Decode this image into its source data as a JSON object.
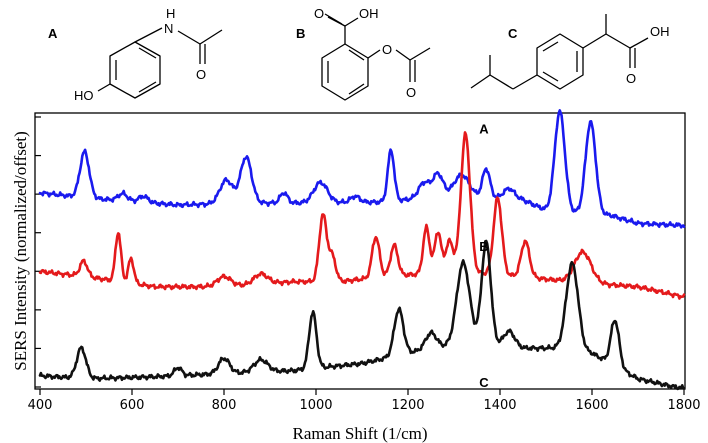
{
  "structures": {
    "A": {
      "label": "A",
      "atoms": {
        "NH": "N",
        "H": "H",
        "O": "O",
        "HO": "HO"
      }
    },
    "B": {
      "label": "B",
      "atoms": {
        "OH": "OH",
        "O_carboxyl": "O",
        "O_ester": "O",
        "O_carbonyl": "O"
      }
    },
    "C": {
      "label": "C",
      "atoms": {
        "OH": "OH",
        "O": "O"
      }
    }
  },
  "chart_data": {
    "type": "line",
    "title": "",
    "xlabel": "Raman Shift (1/cm)",
    "ylabel": "SERS Intensity (normalized/offset)",
    "xlim": [
      400,
      1800
    ],
    "ylim": [
      0,
      2.7
    ],
    "xticks": [
      400,
      600,
      800,
      1000,
      1200,
      1400,
      1600,
      1800
    ],
    "yticks_count": 8,
    "series": [
      {
        "name": "A",
        "color": "#1a1aee",
        "offset": 1.6,
        "baseline": [
          [
            400,
            0.32
          ],
          [
            500,
            0.27
          ],
          [
            700,
            0.2
          ],
          [
            850,
            0.22
          ],
          [
            1000,
            0.22
          ],
          [
            1150,
            0.23
          ],
          [
            1300,
            0.3
          ],
          [
            1450,
            0.25
          ],
          [
            1500,
            0.15
          ],
          [
            1570,
            0.12
          ],
          [
            1640,
            0.1
          ],
          [
            1700,
            0.02
          ],
          [
            1800,
            0.0
          ]
        ],
        "peaks": [
          {
            "x": 497,
            "h": 0.45,
            "w": 10
          },
          {
            "x": 580,
            "h": 0.07,
            "w": 10
          },
          {
            "x": 625,
            "h": 0.06,
            "w": 10
          },
          {
            "x": 805,
            "h": 0.23,
            "w": 14
          },
          {
            "x": 848,
            "h": 0.45,
            "w": 12
          },
          {
            "x": 930,
            "h": 0.1,
            "w": 8
          },
          {
            "x": 1010,
            "h": 0.2,
            "w": 15
          },
          {
            "x": 1085,
            "h": 0.06,
            "w": 10
          },
          {
            "x": 1163,
            "h": 0.5,
            "w": 7
          },
          {
            "x": 1235,
            "h": 0.15,
            "w": 12
          },
          {
            "x": 1265,
            "h": 0.22,
            "w": 11
          },
          {
            "x": 1317,
            "h": 0.2,
            "w": 16
          },
          {
            "x": 1370,
            "h": 0.28,
            "w": 8
          },
          {
            "x": 1420,
            "h": 0.1,
            "w": 12
          },
          {
            "x": 1530,
            "h": 0.98,
            "w": 11
          },
          {
            "x": 1597,
            "h": 0.9,
            "w": 11
          }
        ]
      },
      {
        "name": "B",
        "color": "#e41a1c",
        "offset": 0.8,
        "baseline": [
          [
            400,
            0.35
          ],
          [
            500,
            0.3
          ],
          [
            650,
            0.2
          ],
          [
            800,
            0.2
          ],
          [
            950,
            0.25
          ],
          [
            1050,
            0.25
          ],
          [
            1150,
            0.3
          ],
          [
            1300,
            0.35
          ],
          [
            1450,
            0.3
          ],
          [
            1550,
            0.25
          ],
          [
            1700,
            0.2
          ],
          [
            1800,
            0.1
          ]
        ],
        "peaks": [
          {
            "x": 495,
            "h": 0.15,
            "w": 8
          },
          {
            "x": 570,
            "h": 0.48,
            "w": 6
          },
          {
            "x": 598,
            "h": 0.24,
            "w": 6
          },
          {
            "x": 800,
            "h": 0.1,
            "w": 15
          },
          {
            "x": 880,
            "h": 0.1,
            "w": 15
          },
          {
            "x": 1015,
            "h": 0.65,
            "w": 8
          },
          {
            "x": 1035,
            "h": 0.25,
            "w": 8
          },
          {
            "x": 1130,
            "h": 0.4,
            "w": 8
          },
          {
            "x": 1170,
            "h": 0.3,
            "w": 8
          },
          {
            "x": 1240,
            "h": 0.45,
            "w": 7
          },
          {
            "x": 1265,
            "h": 0.4,
            "w": 7
          },
          {
            "x": 1290,
            "h": 0.3,
            "w": 8
          },
          {
            "x": 1325,
            "h": 1.35,
            "w": 10
          },
          {
            "x": 1395,
            "h": 0.75,
            "w": 9
          },
          {
            "x": 1455,
            "h": 0.35,
            "w": 9
          },
          {
            "x": 1580,
            "h": 0.3,
            "w": 18
          }
        ]
      },
      {
        "name": "C",
        "color": "#111111",
        "offset": 0.0,
        "baseline": [
          [
            400,
            0.13
          ],
          [
            500,
            0.1
          ],
          [
            650,
            0.12
          ],
          [
            800,
            0.15
          ],
          [
            950,
            0.18
          ],
          [
            1100,
            0.25
          ],
          [
            1250,
            0.4
          ],
          [
            1350,
            0.45
          ],
          [
            1450,
            0.4
          ],
          [
            1520,
            0.4
          ],
          [
            1600,
            0.35
          ],
          [
            1700,
            0.1
          ],
          [
            1780,
            0.02
          ],
          [
            1800,
            0.01
          ]
        ],
        "peaks": [
          {
            "x": 490,
            "h": 0.3,
            "w": 10
          },
          {
            "x": 700,
            "h": 0.08,
            "w": 8
          },
          {
            "x": 800,
            "h": 0.15,
            "w": 12
          },
          {
            "x": 880,
            "h": 0.12,
            "w": 15
          },
          {
            "x": 993,
            "h": 0.55,
            "w": 8
          },
          {
            "x": 1180,
            "h": 0.45,
            "w": 10
          },
          {
            "x": 1250,
            "h": 0.15,
            "w": 12
          },
          {
            "x": 1320,
            "h": 0.8,
            "w": 14
          },
          {
            "x": 1370,
            "h": 1.0,
            "w": 10
          },
          {
            "x": 1420,
            "h": 0.15,
            "w": 12
          },
          {
            "x": 1557,
            "h": 0.85,
            "w": 13
          },
          {
            "x": 1650,
            "h": 0.45,
            "w": 9
          }
        ]
      }
    ]
  }
}
